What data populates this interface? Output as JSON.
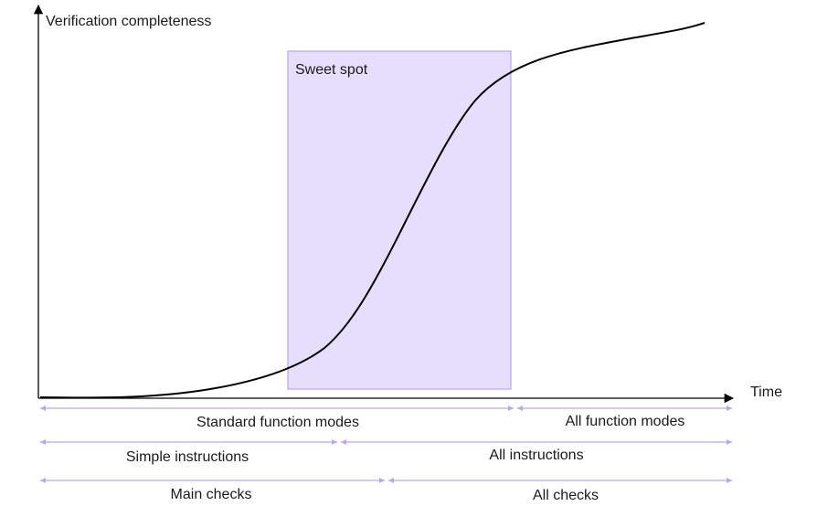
{
  "axes": {
    "y_label": "Verification completeness",
    "x_label": "Time"
  },
  "region": {
    "label": "Sweet spot",
    "fill": "#e6defc",
    "stroke": "#b9a6ee"
  },
  "curve": {
    "shape": "s-curve",
    "color": "#000000"
  },
  "ranges": [
    {
      "left_label": "Standard function modes",
      "right_label": "All function modes"
    },
    {
      "left_label": "Simple instructions",
      "right_label": "All instructions"
    },
    {
      "left_label": "Main checks",
      "right_label": "All checks"
    }
  ]
}
